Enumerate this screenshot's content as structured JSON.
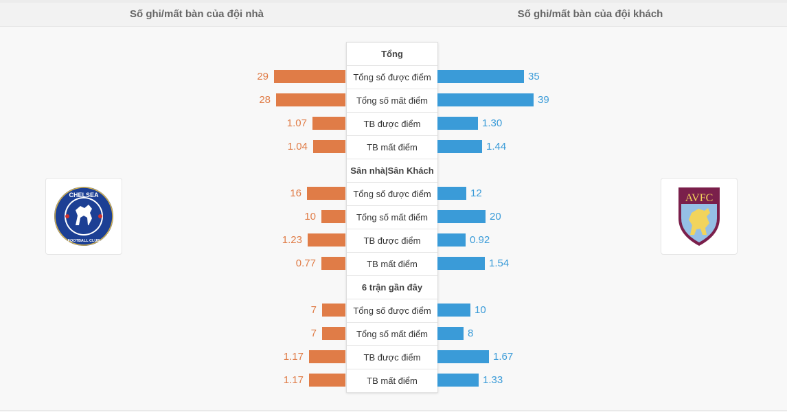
{
  "header": {
    "home_title": "Số ghi/mất bàn của đội nhà",
    "away_title": "Số ghi/mất bàn của đội khách"
  },
  "colors": {
    "home": "#e07c47",
    "away": "#3a9bd8"
  },
  "logos": {
    "home": {
      "icon": "chelsea-crest-icon",
      "text_top": "CHELSEA",
      "text_bottom": "FOOTBALL CLUB"
    },
    "away": {
      "icon": "aston-villa-crest-icon",
      "text": "AVFC"
    }
  },
  "sections": [
    {
      "title": "Tổng",
      "rows": [
        {
          "label": "Tổng số được điểm",
          "home": "29",
          "away": "35"
        },
        {
          "label": "Tổng số mất điểm",
          "home": "28",
          "away": "39"
        },
        {
          "label": "TB được điểm",
          "home": "1.07",
          "away": "1.30"
        },
        {
          "label": "TB mất điểm",
          "home": "1.04",
          "away": "1.44"
        }
      ]
    },
    {
      "title": "Sân nhà|Sân Khách",
      "rows": [
        {
          "label": "Tổng số được điểm",
          "home": "16",
          "away": "12"
        },
        {
          "label": "Tổng số mất điểm",
          "home": "10",
          "away": "20"
        },
        {
          "label": "TB được điểm",
          "home": "1.23",
          "away": "0.92"
        },
        {
          "label": "TB mất điểm",
          "home": "0.77",
          "away": "1.54"
        }
      ]
    },
    {
      "title": "6 trận gần đây",
      "rows": [
        {
          "label": "Tổng số được điểm",
          "home": "7",
          "away": "10"
        },
        {
          "label": "Tổng số mất điểm",
          "home": "7",
          "away": "8"
        },
        {
          "label": "TB được điểm",
          "home": "1.17",
          "away": "1.67"
        },
        {
          "label": "TB mất điểm",
          "home": "1.17",
          "away": "1.33"
        }
      ]
    }
  ]
}
